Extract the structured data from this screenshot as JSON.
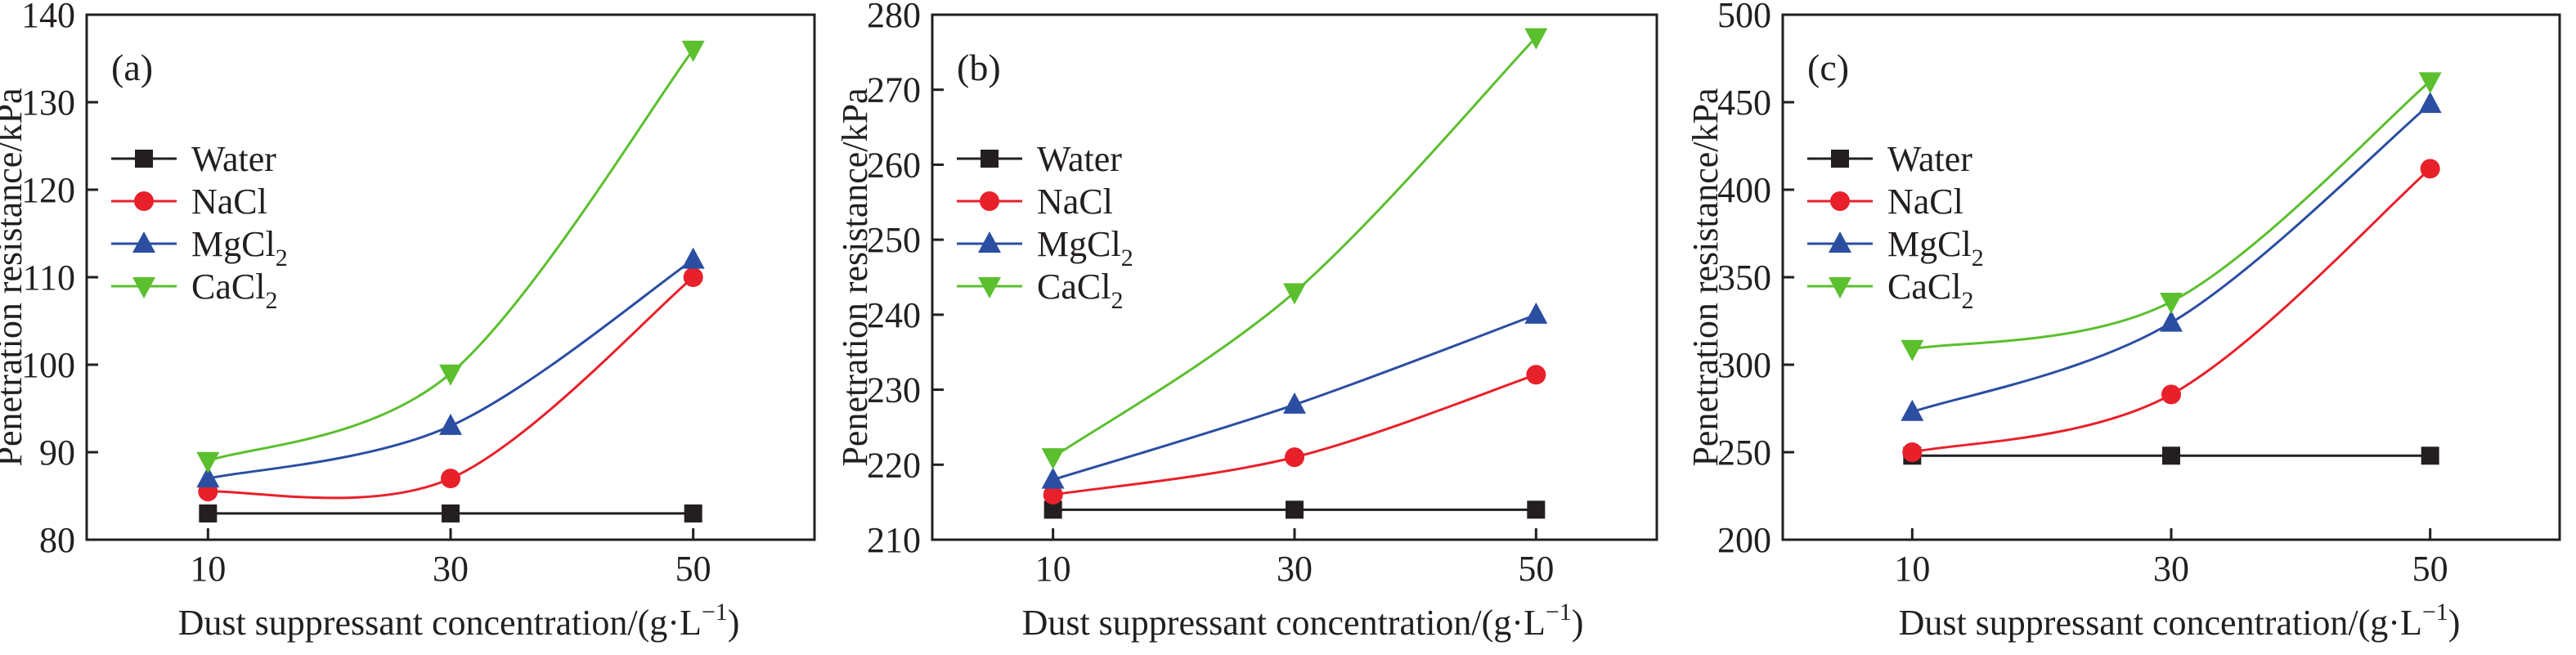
{
  "chart_data": [
    {
      "type": "line",
      "panel_label": "(a)",
      "xlabel": "Dust suppressant concentration/(g·L",
      "xlabel_sup": "−1",
      "xlabel_end": ")",
      "ylabel": "Penetration resistance/kPa",
      "x": [
        10,
        30,
        50
      ],
      "xlim": [
        0,
        60
      ],
      "ylim": [
        80,
        140
      ],
      "yticks": [
        80,
        90,
        100,
        110,
        120,
        130,
        140
      ],
      "xticks": [
        10,
        30,
        50
      ],
      "legend_position": "upper-left",
      "series": [
        {
          "name": "Water",
          "sub": "",
          "marker": "square",
          "color": "#231f20",
          "values": [
            83,
            83,
            83
          ]
        },
        {
          "name": "NaCl",
          "sub": "",
          "marker": "circle",
          "color": "#e8202a",
          "values": [
            85.5,
            87,
            110
          ]
        },
        {
          "name": "MgCl",
          "sub": "2",
          "marker": "triangle-up",
          "color": "#2b4ea2",
          "values": [
            87,
            93,
            112
          ]
        },
        {
          "name": "CaCl",
          "sub": "2",
          "marker": "triangle-down",
          "color": "#5bbf2e",
          "values": [
            89,
            99,
            136
          ]
        }
      ]
    },
    {
      "type": "line",
      "panel_label": "(b)",
      "xlabel": "Dust suppressant concentration/(g·L",
      "xlabel_sup": "−1",
      "xlabel_end": ")",
      "ylabel": "Penetration resistance/kPa",
      "x": [
        10,
        30,
        50
      ],
      "xlim": [
        0,
        60
      ],
      "ylim": [
        210,
        280
      ],
      "yticks": [
        210,
        220,
        230,
        240,
        250,
        260,
        270,
        280
      ],
      "xticks": [
        10,
        30,
        50
      ],
      "legend_position": "upper-left",
      "series": [
        {
          "name": "Water",
          "sub": "",
          "marker": "square",
          "color": "#231f20",
          "values": [
            214,
            214,
            214
          ]
        },
        {
          "name": "NaCl",
          "sub": "",
          "marker": "circle",
          "color": "#e8202a",
          "values": [
            216,
            221,
            232
          ]
        },
        {
          "name": "MgCl",
          "sub": "2",
          "marker": "triangle-up",
          "color": "#2b4ea2",
          "values": [
            218,
            228,
            240
          ]
        },
        {
          "name": "CaCl",
          "sub": "2",
          "marker": "triangle-down",
          "color": "#5bbf2e",
          "values": [
            221,
            243,
            277
          ]
        }
      ]
    },
    {
      "type": "line",
      "panel_label": "(c)",
      "xlabel": "Dust suppressant concentration/(g·L",
      "xlabel_sup": "−1",
      "xlabel_end": ")",
      "ylabel": "Penetration resistance/kPa",
      "x": [
        10,
        30,
        50
      ],
      "xlim": [
        0,
        60
      ],
      "ylim": [
        200,
        500
      ],
      "yticks": [
        200,
        250,
        300,
        350,
        400,
        450,
        500
      ],
      "xticks": [
        10,
        30,
        50
      ],
      "legend_position": "upper-left",
      "series": [
        {
          "name": "Water",
          "sub": "",
          "marker": "square",
          "color": "#231f20",
          "values": [
            248,
            248,
            248
          ]
        },
        {
          "name": "NaCl",
          "sub": "",
          "marker": "circle",
          "color": "#e8202a",
          "values": [
            250,
            283,
            412
          ]
        },
        {
          "name": "MgCl",
          "sub": "2",
          "marker": "triangle-up",
          "color": "#2b4ea2",
          "values": [
            273,
            324,
            449
          ]
        },
        {
          "name": "CaCl",
          "sub": "2",
          "marker": "triangle-down",
          "color": "#5bbf2e",
          "values": [
            309,
            336,
            462
          ]
        }
      ]
    }
  ]
}
